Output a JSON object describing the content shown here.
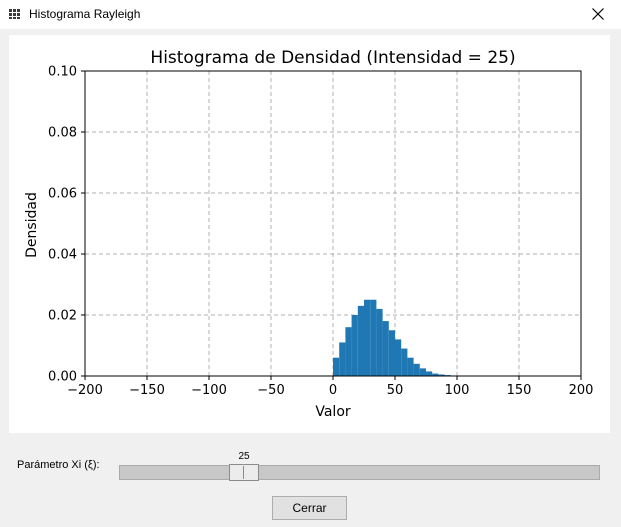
{
  "window": {
    "title": "Histograma Rayleigh",
    "app_icon": "grid-app-icon",
    "close_icon": "close-icon"
  },
  "chart_data": {
    "type": "bar",
    "title": "Histograma de Densidad (Intensidad = 25)",
    "xlabel": "Valor",
    "ylabel": "Densidad",
    "xlim": [
      -200,
      200
    ],
    "ylim": [
      0,
      0.1
    ],
    "grid": true,
    "grid_style": "dashed",
    "bar_color": "#1f77b4",
    "xticks": [
      -200,
      -150,
      -100,
      -50,
      0,
      50,
      100,
      150,
      200
    ],
    "xtick_labels": [
      "−200",
      "−150",
      "−100",
      "−50",
      "0",
      "50",
      "100",
      "150",
      "200"
    ],
    "yticks": [
      0.0,
      0.02,
      0.04,
      0.06,
      0.08,
      0.1
    ],
    "ytick_labels": [
      "0.00",
      "0.02",
      "0.04",
      "0.06",
      "0.08",
      "0.10"
    ],
    "bin_width": 5,
    "bins": [
      {
        "x": 0,
        "value": 0.006
      },
      {
        "x": 5,
        "value": 0.011
      },
      {
        "x": 10,
        "value": 0.016
      },
      {
        "x": 15,
        "value": 0.02
      },
      {
        "x": 20,
        "value": 0.023
      },
      {
        "x": 25,
        "value": 0.025
      },
      {
        "x": 30,
        "value": 0.025
      },
      {
        "x": 35,
        "value": 0.022
      },
      {
        "x": 40,
        "value": 0.018
      },
      {
        "x": 45,
        "value": 0.015
      },
      {
        "x": 50,
        "value": 0.012
      },
      {
        "x": 55,
        "value": 0.009
      },
      {
        "x": 60,
        "value": 0.006
      },
      {
        "x": 65,
        "value": 0.004
      },
      {
        "x": 70,
        "value": 0.0025
      },
      {
        "x": 75,
        "value": 0.0015
      },
      {
        "x": 80,
        "value": 0.0008
      },
      {
        "x": 85,
        "value": 0.0005
      },
      {
        "x": 90,
        "value": 0.0003
      },
      {
        "x": 95,
        "value": 0.0001
      }
    ]
  },
  "controls": {
    "slider_label": "Parámetro Xi (ξ):",
    "slider_value": 25,
    "slider_value_text": "25",
    "slider_min": 0,
    "slider_max": 200,
    "close_label": "Cerrar"
  }
}
